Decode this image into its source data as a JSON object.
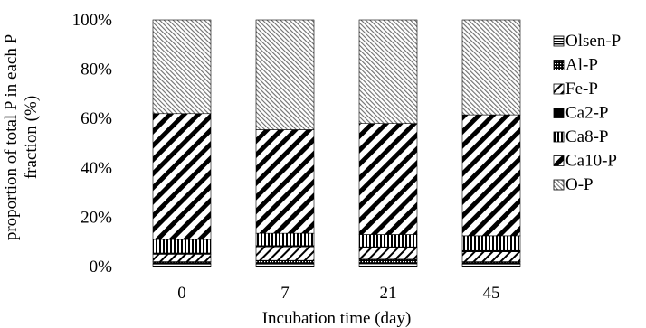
{
  "chart_data": {
    "type": "bar",
    "stacked": true,
    "title": "",
    "xlabel": "Incubation time (day)",
    "ylabel_lines": [
      "proportion of total P in each P",
      "fraction (%)"
    ],
    "ylim": [
      0,
      100
    ],
    "yticks": [
      "0%",
      "20%",
      "40%",
      "60%",
      "80%",
      "100%"
    ],
    "categories": [
      "0",
      "7",
      "21",
      "45"
    ],
    "legend_position": "right",
    "series": [
      {
        "name": "Olsen-P",
        "pattern": "horizontal-lines",
        "values": [
          1.0,
          1.0,
          1.5,
          1.0
        ]
      },
      {
        "name": "Al-P",
        "pattern": "grid",
        "values": [
          1.0,
          1.5,
          1.5,
          1.0
        ]
      },
      {
        "name": "Fe-P",
        "pattern": "sparse-diagonal",
        "values": [
          3.0,
          5.5,
          4.5,
          4.0
        ]
      },
      {
        "name": "Ca2-P",
        "pattern": "solid",
        "values": [
          0.5,
          0.5,
          0.5,
          0.5
        ]
      },
      {
        "name": "Ca8-P",
        "pattern": "vertical-lines",
        "values": [
          5.5,
          5.0,
          5.0,
          6.0
        ]
      },
      {
        "name": "Ca10-P",
        "pattern": "wide-diagonal",
        "values": [
          51.0,
          42.0,
          45.0,
          49.0
        ]
      },
      {
        "name": "O-P",
        "pattern": "fine-diagonal",
        "values": [
          38.0,
          44.5,
          42.0,
          38.5
        ]
      }
    ]
  }
}
